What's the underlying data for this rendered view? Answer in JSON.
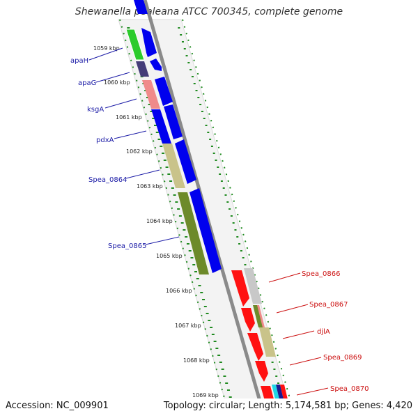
{
  "title": "Shewanella pealeana ATCC 700345, complete genome",
  "footer": {
    "accession": "Accession: NC_009901",
    "summary": "Topology: circular; Length: 5,174,581 bp; Genes: 4,420"
  },
  "ticks": [
    "1059 kbp",
    "1060 kbp",
    "1061 kbp",
    "1062 kbp",
    "1063 kbp",
    "1064 kbp",
    "1065 kbp",
    "1066 kbp",
    "1067 kbp",
    "1068 kbp",
    "1069 kbp"
  ],
  "forward_genes": [
    "apaH",
    "apaG",
    "ksgA",
    "pdxA",
    "Spea_0864",
    "Spea_0865"
  ],
  "reverse_genes": [
    "Spea_0866",
    "Spea_0867",
    "djlA",
    "Spea_0869",
    "Spea_0870"
  ],
  "colors": {
    "forward_label": "#1a1aa6",
    "reverse_label": "#cc1111",
    "forward_cds": "#0000ee",
    "reverse_cds": "#ff1111",
    "backbone": "#8a8a8a",
    "gc_dash": "#1f8a1f"
  }
}
